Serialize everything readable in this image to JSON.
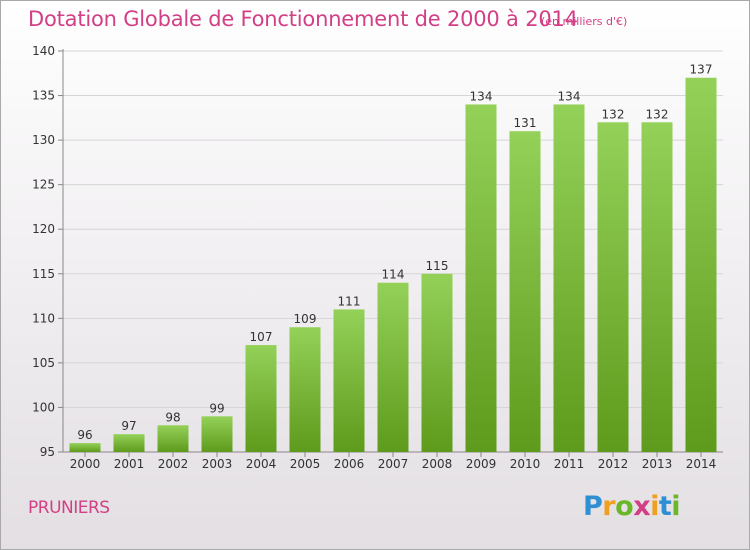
{
  "page": {
    "title": "Dotation Globale de Fonctionnement de 2000 à 2014",
    "unit_note": "(en milliers d'€)",
    "commune": "PRUNIERS"
  },
  "logo": {
    "letters": [
      "P",
      "r",
      "o",
      "x",
      "i",
      "t",
      "i"
    ],
    "colors": [
      "#2e8fd3",
      "#f0a020",
      "#6ab82a",
      "#d33f85",
      "#f0a020",
      "#2e8fd3",
      "#6ab82a"
    ]
  },
  "colors": {
    "accent": "#d33f85",
    "bar_light": "#94d159",
    "bar_dark": "#5e9a1b"
  },
  "chart_data": {
    "type": "bar",
    "categories": [
      "2000",
      "2001",
      "2002",
      "2003",
      "2004",
      "2005",
      "2006",
      "2007",
      "2008",
      "2009",
      "2010",
      "2011",
      "2012",
      "2013",
      "2014"
    ],
    "values": [
      96,
      97,
      98,
      99,
      107,
      109,
      111,
      114,
      115,
      134,
      131,
      134,
      132,
      132,
      137
    ],
    "title": "Dotation Globale de Fonctionnement de 2000 à 2014",
    "ylim": [
      95,
      140
    ],
    "yticks": [
      95,
      100,
      105,
      110,
      115,
      120,
      125,
      130,
      135,
      140
    ],
    "grid": true
  }
}
